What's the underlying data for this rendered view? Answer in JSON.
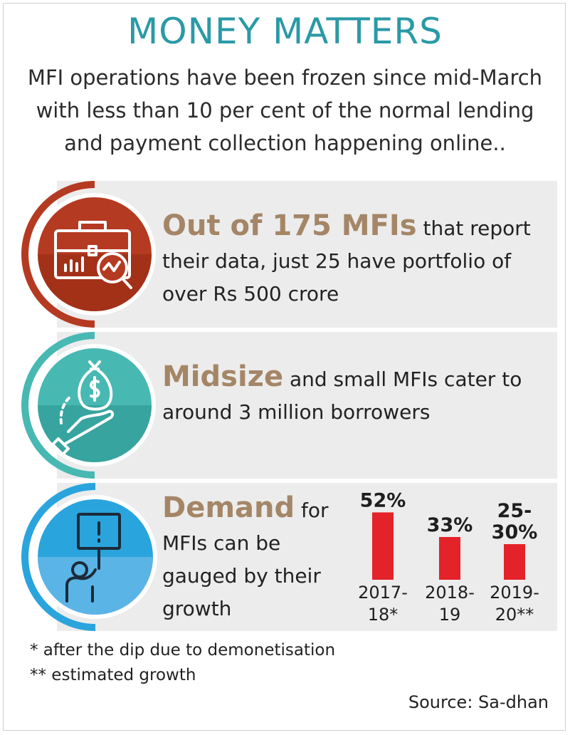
{
  "title": "MONEY MATTERS",
  "subtitle_lines": [
    "MFI operations have been frozen since mid-March",
    "with less than 10 per cent of the normal lending",
    "and payment collection happening online.."
  ],
  "panels": [
    {
      "highlight": "Out of 175 MFIs",
      "text": " that report their data, just 25 have portfolio of over Rs 500 crore",
      "icon": "briefcase-chart-icon",
      "color": "#b53a22"
    },
    {
      "highlight": "Midsize",
      "text": " and small MFIs cater to around 3 million borrowers",
      "icon": "money-bag-hand-icon",
      "color": "#48b8b3"
    },
    {
      "highlight": "Demand",
      "text": " for MFIs can be gauged by their growth",
      "icon": "person-sign-icon",
      "color": "#2aa4dc"
    }
  ],
  "chart_data": {
    "type": "bar",
    "categories": [
      "2017-18*",
      "2018-19",
      "2019-20**"
    ],
    "category_lines": [
      [
        "2017-",
        "18*"
      ],
      [
        "2018-",
        "19"
      ],
      [
        "2019-",
        "20**"
      ]
    ],
    "values": [
      52,
      33,
      27.5
    ],
    "value_labels": [
      [
        "52%"
      ],
      [
        "33%"
      ],
      [
        "25-",
        "30%"
      ]
    ],
    "title": "",
    "xlabel": "",
    "ylabel": "",
    "ylim": [
      0,
      55
    ],
    "bar_color": "#e42229",
    "grid": false
  },
  "footnotes": [
    "* after the dip due to demonetisation",
    "** estimated growth"
  ],
  "source": "Source: Sa-dhan"
}
